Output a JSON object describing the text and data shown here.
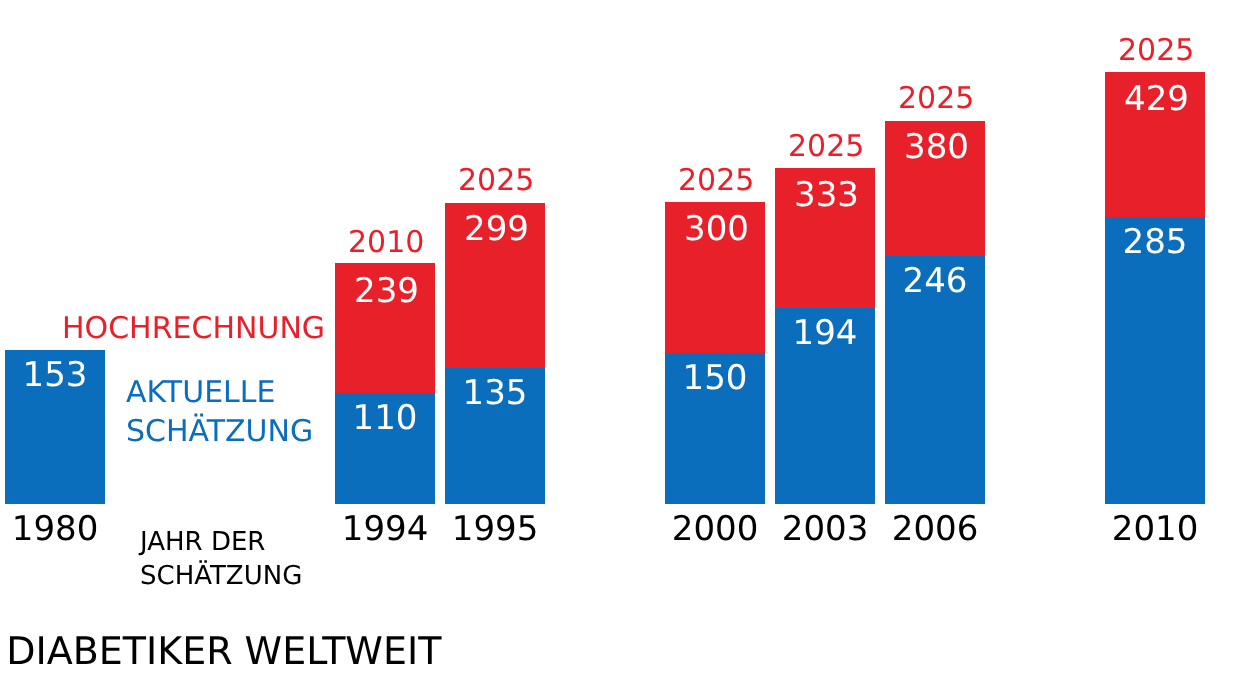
{
  "chart_data": {
    "type": "bar",
    "stacked": true,
    "title": "DIABETIKER WELTWEIT",
    "xlabel": "JAHR DER\nSCHÄTZUNG",
    "categories": [
      "1980",
      null,
      null,
      "1994",
      "1995",
      null,
      "2000",
      "2003",
      "2006",
      null,
      "2010"
    ],
    "series": [
      {
        "name": "AKTUELLE\nSCHÄTZUNG",
        "color": "#0a6ebd",
        "values": [
          153,
          null,
          null,
          110,
          135,
          null,
          150,
          194,
          246,
          null,
          285
        ],
        "value_labels": [
          "153",
          null,
          null,
          "110",
          "135",
          null,
          "150",
          "194",
          "246",
          null,
          "285"
        ]
      },
      {
        "name": "HOCHRECHNUNG",
        "color": "#e8202a",
        "values": [
          null,
          null,
          null,
          129,
          164,
          null,
          150,
          139,
          134,
          null,
          144
        ]
      }
    ],
    "totals": [
      null,
      null,
      null,
      "239",
      "299",
      null,
      "300",
      "333",
      "380",
      null,
      "429"
    ],
    "annotations": [
      {
        "text": "2010",
        "x": "1994",
        "y": 239
      },
      {
        "text": "2025",
        "x": "1995",
        "y": 299
      },
      {
        "text": "2025",
        "x": "2000",
        "y": 300
      },
      {
        "text": "2025",
        "x": "2003",
        "y": 333
      },
      {
        "text": "2025",
        "x": "2006",
        "y": 380
      },
      {
        "text": "2025",
        "x": "2010",
        "y": 429
      }
    ],
    "ylim": [
      0,
      500
    ],
    "legend": false,
    "tick_labels": "x"
  }
}
